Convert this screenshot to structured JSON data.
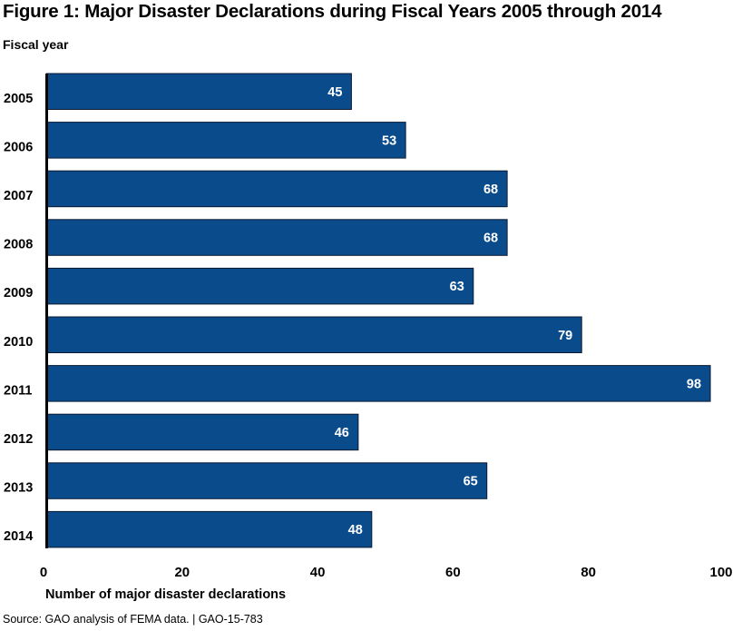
{
  "chart_data": {
    "type": "bar",
    "orientation": "horizontal",
    "title": "Figure 1: Major Disaster Declarations during Fiscal Years 2005 through 2014",
    "ylabel": "Fiscal year",
    "xlabel": "Number of major disaster declarations",
    "categories": [
      "2005",
      "2006",
      "2007",
      "2008",
      "2009",
      "2010",
      "2011",
      "2012",
      "2013",
      "2014"
    ],
    "values": [
      45,
      53,
      68,
      68,
      63,
      79,
      98,
      46,
      65,
      48
    ],
    "xlim": [
      0,
      100
    ],
    "xticks": [
      0,
      20,
      40,
      60,
      80,
      100
    ],
    "grid": false,
    "bar_color": "#0a4b8c",
    "data_labels": true,
    "source": "Source: GAO analysis of FEMA data.  |  GAO-15-783"
  }
}
